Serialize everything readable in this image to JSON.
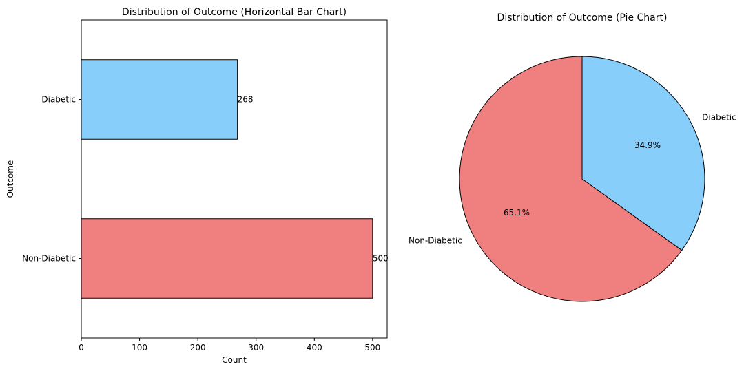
{
  "chart_data": [
    {
      "type": "bar",
      "orientation": "horizontal",
      "title": "Distribution of Outcome (Horizontal Bar Chart)",
      "xlabel": "Count",
      "ylabel": "Outcome",
      "categories": [
        "Non-Diabetic",
        "Diabetic"
      ],
      "values": [
        500,
        268
      ],
      "data_labels": [
        "500",
        "268"
      ],
      "colors": [
        "#f08080",
        "#87cefa"
      ],
      "xlim": [
        0,
        525
      ],
      "xticks": [
        0,
        100,
        200,
        300,
        400,
        500
      ],
      "grid": false
    },
    {
      "type": "pie",
      "title": "Distribution of Outcome (Pie Chart)",
      "labels": [
        "Diabetic",
        "Non-Diabetic"
      ],
      "values": [
        268,
        500
      ],
      "percent_labels": [
        "34.9%",
        "65.1%"
      ],
      "colors": [
        "#87cefa",
        "#f08080"
      ],
      "start_angle_deg": 90,
      "direction": "clockwise"
    }
  ]
}
